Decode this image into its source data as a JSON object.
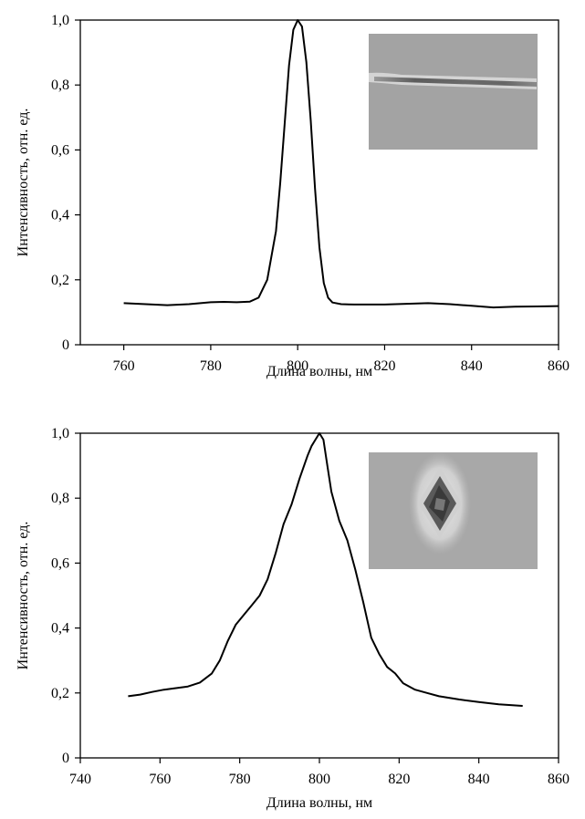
{
  "chart_data": [
    {
      "type": "line",
      "xlabel": "Длина волны, нм",
      "ylabel": "Интенсивность, отн. ед.",
      "xlim": [
        750,
        860
      ],
      "ylim": [
        0,
        1.0
      ],
      "xticks": [
        760,
        780,
        800,
        820,
        840,
        860
      ],
      "xtick_labels": [
        "760",
        "780",
        "800",
        "820",
        "840",
        "860"
      ],
      "yticks": [
        0,
        0.2,
        0.4,
        0.6,
        0.8,
        1.0
      ],
      "ytick_labels": [
        "0",
        "0,2",
        "0,4",
        "0,6",
        "0,8",
        "1,0"
      ],
      "grid": false,
      "inset_image": "thin-horizontal-line-beam-profile",
      "series": [
        {
          "x": [
            760,
            765,
            770,
            775,
            780,
            783,
            786,
            789,
            791,
            793,
            795,
            796,
            797,
            798,
            799,
            800,
            801,
            802,
            803,
            804,
            805,
            806,
            807,
            808,
            810,
            813,
            816,
            820,
            825,
            830,
            835,
            840,
            845,
            850,
            855,
            860
          ],
          "y": [
            0.128,
            0.125,
            0.122,
            0.125,
            0.131,
            0.132,
            0.131,
            0.133,
            0.145,
            0.2,
            0.35,
            0.5,
            0.68,
            0.86,
            0.97,
            1.0,
            0.98,
            0.87,
            0.69,
            0.48,
            0.3,
            0.19,
            0.145,
            0.13,
            0.125,
            0.124,
            0.124,
            0.124,
            0.126,
            0.128,
            0.125,
            0.12,
            0.115,
            0.117,
            0.118,
            0.119
          ]
        }
      ]
    },
    {
      "type": "line",
      "xlabel": "Длина волны, нм",
      "ylabel": "Интенсивность, отн. ед.",
      "xlim": [
        740,
        860
      ],
      "ylim": [
        0,
        1.0
      ],
      "xticks": [
        740,
        760,
        780,
        800,
        820,
        840,
        860
      ],
      "xtick_labels": [
        "740",
        "760",
        "780",
        "800",
        "820",
        "840",
        "860"
      ],
      "yticks": [
        0,
        0.2,
        0.4,
        0.6,
        0.8,
        1.0
      ],
      "ytick_labels": [
        "0",
        "0,2",
        "0,4",
        "0,6",
        "0,8",
        "1,0"
      ],
      "grid": false,
      "inset_image": "diamond-shaped-dark-spot-beam-profile",
      "series": [
        {
          "x": [
            752,
            755,
            758,
            761,
            764,
            767,
            770,
            773,
            775,
            777,
            779,
            781,
            783,
            785,
            787,
            789,
            791,
            793,
            795,
            797,
            798,
            799,
            800,
            801,
            802,
            803,
            805,
            807,
            809,
            811,
            813,
            815,
            817,
            819,
            821,
            824,
            827,
            830,
            835,
            840,
            845,
            851
          ],
          "y": [
            0.19,
            0.195,
            0.203,
            0.21,
            0.215,
            0.22,
            0.232,
            0.26,
            0.3,
            0.36,
            0.41,
            0.44,
            0.47,
            0.5,
            0.55,
            0.63,
            0.72,
            0.78,
            0.86,
            0.93,
            0.96,
            0.98,
            1.0,
            0.98,
            0.9,
            0.82,
            0.73,
            0.67,
            0.58,
            0.48,
            0.37,
            0.32,
            0.28,
            0.26,
            0.23,
            0.21,
            0.2,
            0.19,
            0.18,
            0.172,
            0.165,
            0.16
          ]
        }
      ]
    }
  ]
}
